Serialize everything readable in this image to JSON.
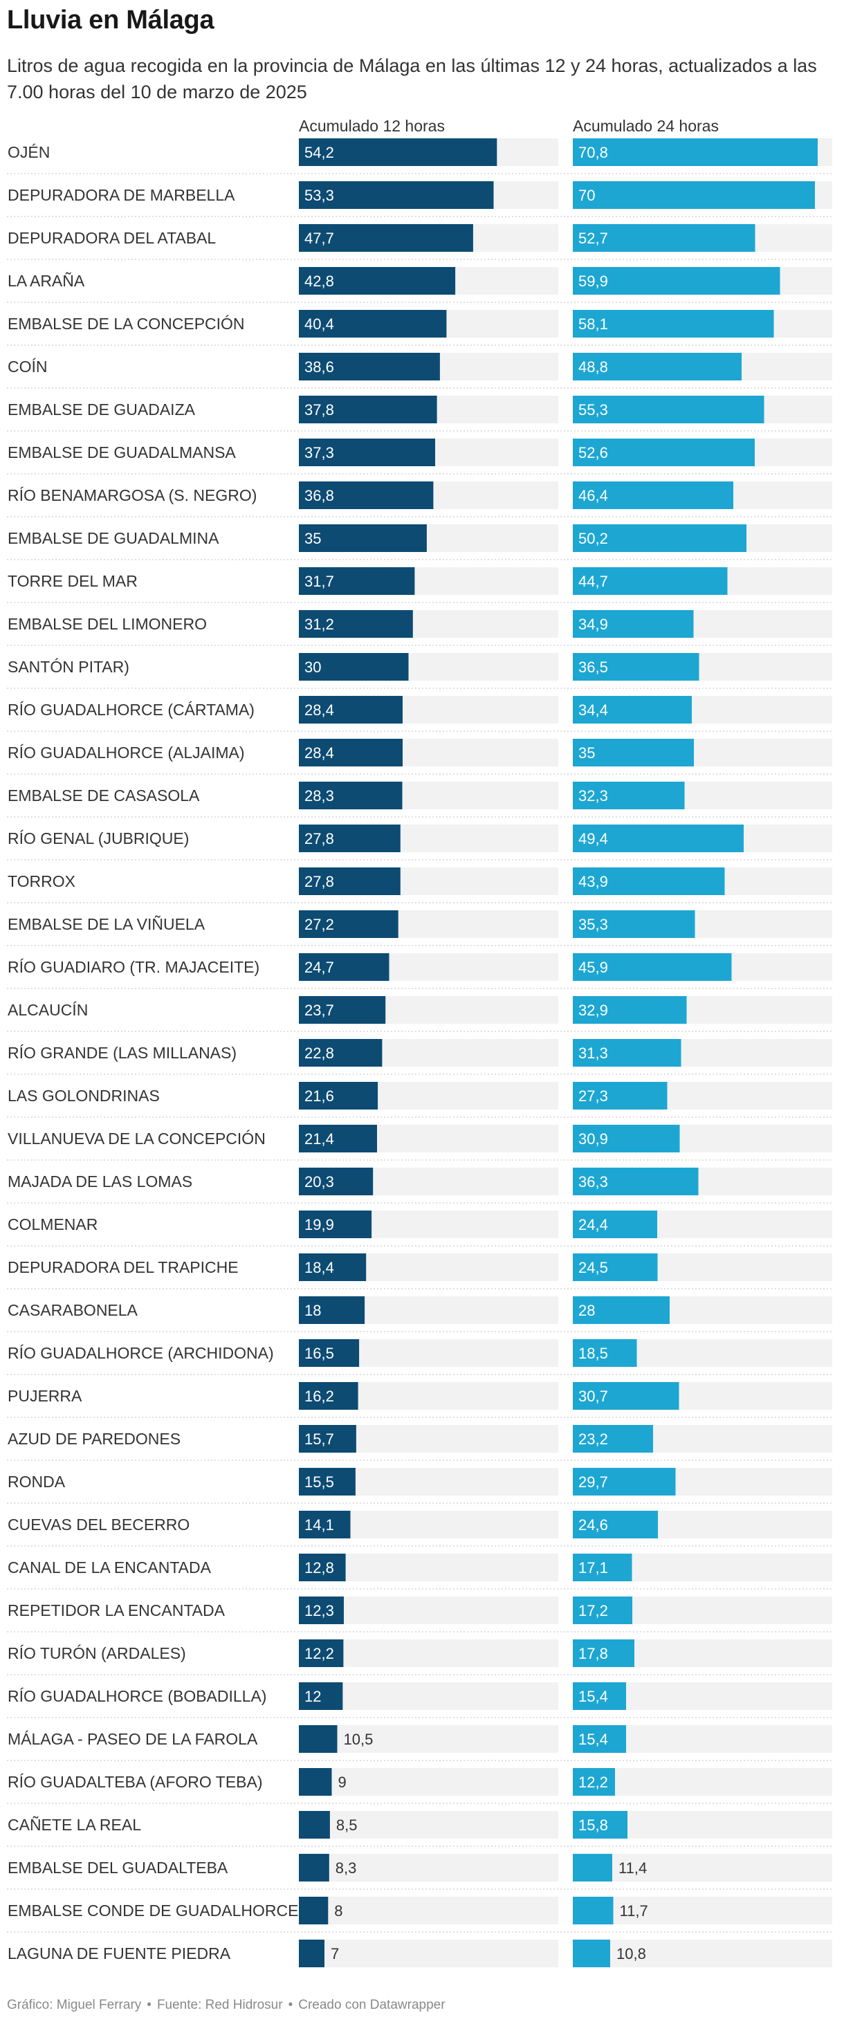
{
  "title": "Lluvia en Málaga",
  "subtitle": "Litros de agua recogida en la provincia de Málaga en las últimas 12 y 24 horas, actualizados a las 7.00 horas del 10 de marzo de 2025",
  "footer": {
    "graphic": "Gráfico: Miguel Ferrary",
    "source": "Fuente: Red Hidrosur",
    "tool": "Creado con Datawrapper",
    "separator": "•"
  },
  "colors": {
    "series_12h": "#0d4b73",
    "series_24h": "#1ea6d2",
    "track": "#f2f2f2",
    "label_inside": "#ffffff",
    "label_outside": "#333333"
  },
  "chart_data": {
    "type": "bar",
    "orientation": "horizontal",
    "categories": [
      "OJÉN",
      "DEPURADORA DE MARBELLA",
      "DEPURADORA DEL ATABAL",
      "LA ARAÑA",
      "EMBALSE DE LA CONCEPCIÓN",
      "COÍN",
      "EMBALSE DE GUADAIZA",
      "EMBALSE DE GUADALMANSA",
      "RÍO BENAMARGOSA (S. NEGRO)",
      "EMBALSE DE GUADALMINA",
      "TORRE DEL MAR",
      "EMBALSE DEL LIMONERO",
      "SANTÓN PITAR)",
      "RÍO GUADALHORCE (CÁRTAMA)",
      "RÍO GUADALHORCE (ALJAIMA)",
      "EMBALSE DE CASASOLA",
      "RÍO GENAL (JUBRIQUE)",
      "TORROX",
      "EMBALSE DE LA VIÑUELA",
      "RÍO GUADIARO (TR. MAJACEITE)",
      "ALCAUCÍN",
      "RÍO GRANDE (LAS MILLANAS)",
      "LAS GOLONDRINAS",
      "VILLANUEVA DE LA CONCEPCIÓN",
      "MAJADA DE LAS LOMAS",
      "COLMENAR",
      "DEPURADORA DEL TRAPICHE",
      "CASARABONELA",
      "RÍO GUADALHORCE (ARCHIDONA)",
      "PUJERRA",
      "AZUD DE PAREDONES",
      "RONDA",
      "CUEVAS DEL BECERRO",
      "CANAL DE LA ENCANTADA",
      "REPETIDOR LA ENCANTADA",
      "RÍO TURÓN (ARDALES)",
      "RÍO GUADALHORCE (BOBADILLA)",
      "MÁLAGA - PASEO DE LA FAROLA",
      "RÍO GUADALTEBA (AFORO TEBA)",
      "CAÑETE LA REAL",
      "EMBALSE DEL GUADALTEBA",
      "EMBALSE CONDE DE GUADALHORCE",
      "LAGUNA DE FUENTE PIEDRA"
    ],
    "series": [
      {
        "name": "Acumulado 12 horas",
        "values": [
          54.2,
          53.3,
          47.7,
          42.8,
          40.4,
          38.6,
          37.8,
          37.3,
          36.8,
          35,
          31.7,
          31.2,
          30,
          28.4,
          28.4,
          28.3,
          27.8,
          27.8,
          27.2,
          24.7,
          23.7,
          22.8,
          21.6,
          21.4,
          20.3,
          19.9,
          18.4,
          18,
          16.5,
          16.2,
          15.7,
          15.5,
          14.1,
          12.8,
          12.3,
          12.2,
          12,
          10.5,
          9,
          8.5,
          8.3,
          8,
          7
        ],
        "labels": [
          "54,2",
          "53,3",
          "47,7",
          "42,8",
          "40,4",
          "38,6",
          "37,8",
          "37,3",
          "36,8",
          "35",
          "31,7",
          "31,2",
          "30",
          "28,4",
          "28,4",
          "28,3",
          "27,8",
          "27,8",
          "27,2",
          "24,7",
          "23,7",
          "22,8",
          "21,6",
          "21,4",
          "20,3",
          "19,9",
          "18,4",
          "18",
          "16,5",
          "16,2",
          "15,7",
          "15,5",
          "14,1",
          "12,8",
          "12,3",
          "12,2",
          "12",
          "10,5",
          "9",
          "8,5",
          "8,3",
          "8",
          "7"
        ],
        "xlim": [
          0,
          71
        ]
      },
      {
        "name": "Acumulado 24 horas",
        "values": [
          70.8,
          70,
          52.7,
          59.9,
          58.1,
          48.8,
          55.3,
          52.6,
          46.4,
          50.2,
          44.7,
          34.9,
          36.5,
          34.4,
          35,
          32.3,
          49.4,
          43.9,
          35.3,
          45.9,
          32.9,
          31.3,
          27.3,
          30.9,
          36.3,
          24.4,
          24.5,
          28,
          18.5,
          30.7,
          23.2,
          29.7,
          24.6,
          17.1,
          17.2,
          17.8,
          15.4,
          15.4,
          12.2,
          15.8,
          11.4,
          11.7,
          10.8
        ],
        "labels": [
          "70,8",
          "70",
          "52,7",
          "59,9",
          "58,1",
          "48,8",
          "55,3",
          "52,6",
          "46,4",
          "50,2",
          "44,7",
          "34,9",
          "36,5",
          "34,4",
          "35",
          "32,3",
          "49,4",
          "43,9",
          "35,3",
          "45,9",
          "32,9",
          "31,3",
          "27,3",
          "30,9",
          "36,3",
          "24,4",
          "24,5",
          "28",
          "18,5",
          "30,7",
          "23,2",
          "29,7",
          "24,6",
          "17,1",
          "17,2",
          "17,8",
          "15,4",
          "15,4",
          "12,2",
          "15,8",
          "11,4",
          "11,7",
          "10,8"
        ],
        "xlim": [
          0,
          75
        ]
      }
    ],
    "title": "Lluvia en Málaga",
    "xlabel": "",
    "ylabel": "",
    "grid": false,
    "legend": "column headers"
  }
}
